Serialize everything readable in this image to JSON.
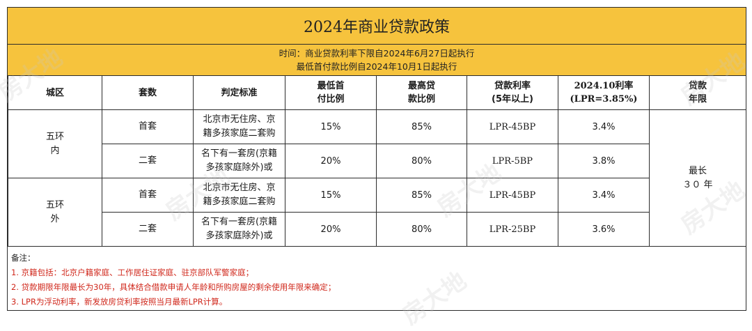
{
  "title": "2024年商业贷款政策",
  "subtitle": {
    "line1": "时间：商业贷款利率下限自2024年6月27日起执行",
    "line2": "最低首付款比例自2024年10月1日起执行"
  },
  "headers": {
    "district": "城区",
    "count": "套数",
    "criteria": "判定标准",
    "down_payment": [
      "最低首",
      "付比例"
    ],
    "max_loan": [
      "最高贷",
      "款比例"
    ],
    "rate": [
      "贷款利率",
      "(5年以上)"
    ],
    "rate_oct": [
      "2024.10利率",
      "(LPR=3.85%)"
    ],
    "term": [
      "贷款",
      "年限"
    ]
  },
  "districts": {
    "inner": [
      "五环",
      "内"
    ],
    "outer": [
      "五环",
      "外"
    ]
  },
  "rows": [
    {
      "count": "首套",
      "criteria": [
        "北京市无住房、京",
        "籍多孩家庭二套购"
      ],
      "down_payment": "15%",
      "max_loan": "85%",
      "rate": "LPR-45BP",
      "rate_oct": "3.4%"
    },
    {
      "count": "二套",
      "criteria": [
        "名下有一套房(京籍",
        "多孩家庭除外)或"
      ],
      "down_payment": "20%",
      "max_loan": "80%",
      "rate": "LPR-5BP",
      "rate_oct": "3.8%"
    },
    {
      "count": "首套",
      "criteria": [
        "北京市无住房、京",
        "籍多孩家庭二套购"
      ],
      "down_payment": "15%",
      "max_loan": "85%",
      "rate": "LPR-45BP",
      "rate_oct": "3.4%"
    },
    {
      "count": "二套",
      "criteria": [
        "名下有一套房(京籍",
        "多孩家庭除外)或"
      ],
      "down_payment": "20%",
      "max_loan": "80%",
      "rate": "LPR-25BP",
      "rate_oct": "3.6%"
    }
  ],
  "term": [
    "最长",
    "３０ 年"
  ],
  "notes": {
    "label": "备注：",
    "items": [
      "1. 京籍包括：北京户籍家庭、工作居住证家庭、驻京部队军警家庭；",
      "2. 贷款期限年限最长为30年，具体结合借款申请人年龄和所购房屋的剩余使用年限来确定；",
      "3. LPR为浮动利率，新发放房贷利率按照当月最新LPR计算。"
    ]
  },
  "watermark": "房大地",
  "colors": {
    "header_bg": "#f6c33d",
    "note_red": "#d0281c",
    "border": "#2b2b2b"
  }
}
